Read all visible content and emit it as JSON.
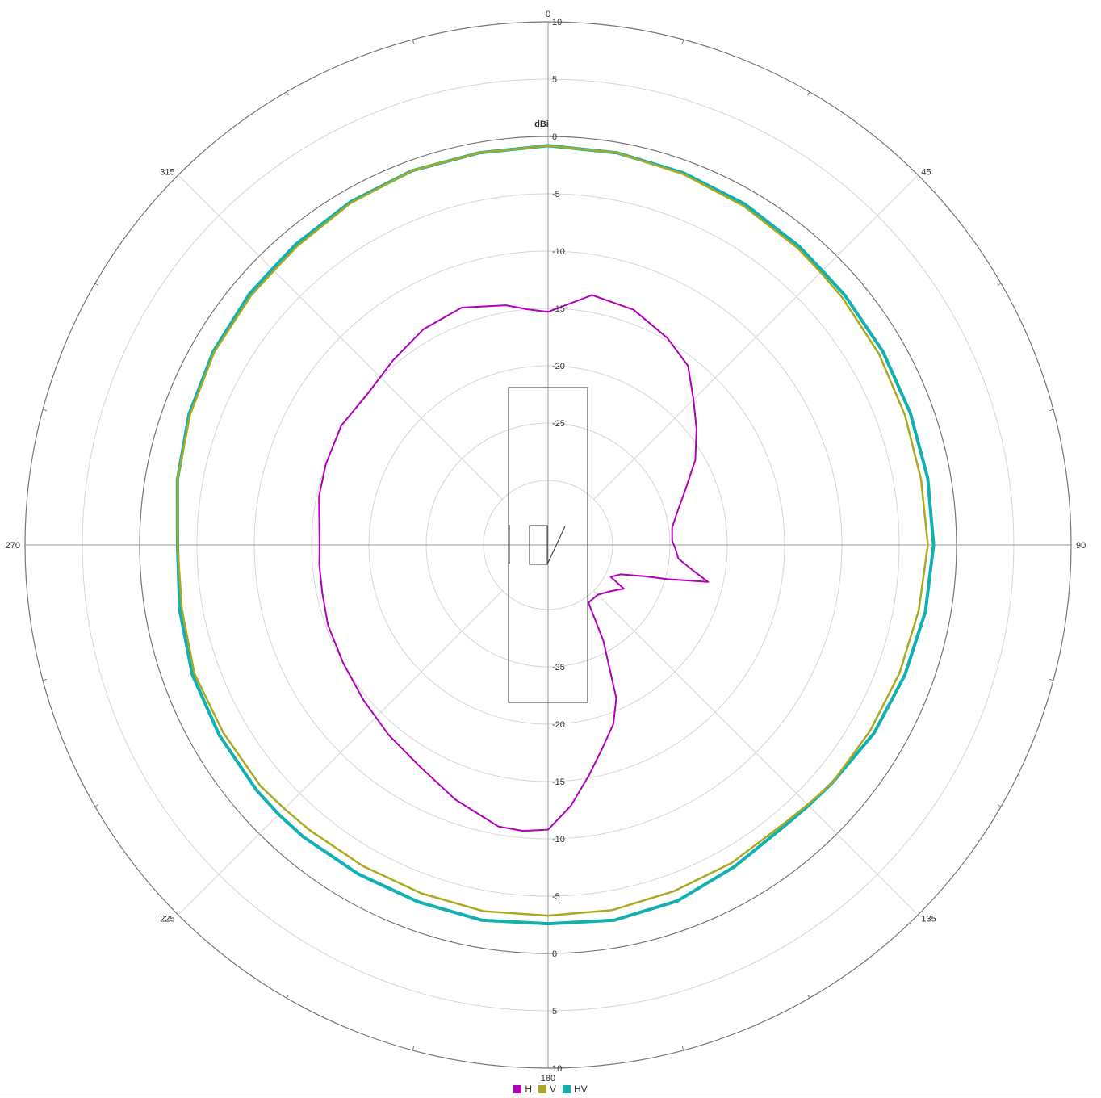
{
  "chart_data": {
    "type": "polar-line",
    "unit_label": "dBi",
    "radial_ticks": [
      "10",
      "5",
      "0",
      "-5",
      "-10",
      "-15",
      "-20",
      "-25"
    ],
    "radial_range": [
      -30,
      10
    ],
    "angle_labels": [
      "0",
      "45",
      "90",
      "135",
      "180",
      "225",
      "270",
      "315"
    ],
    "angular_grid_step_deg": 45,
    "legend_placement": "bottom-center",
    "series": [
      {
        "name": "H",
        "color": "#b000b8",
        "points": [
          [
            0,
            -15.3
          ],
          [
            10,
            -13.5
          ],
          [
            20,
            -13.8
          ],
          [
            30,
            -14.8
          ],
          [
            38,
            -15.8
          ],
          [
            45,
            -17.7
          ],
          [
            52,
            -19.2
          ],
          [
            60,
            -20.8
          ],
          [
            68,
            -22.7
          ],
          [
            75,
            -23.9
          ],
          [
            82,
            -24.7
          ],
          [
            88,
            -24.8
          ],
          [
            92,
            -24.5
          ],
          [
            96,
            -24.2
          ],
          [
            100,
            -22.8
          ],
          [
            103,
            -21.3
          ],
          [
            106,
            -24.8
          ],
          [
            108,
            -26.8
          ],
          [
            112,
            -28.8
          ],
          [
            117,
            -29.5
          ],
          [
            120,
            -28.0
          ],
          [
            126,
            -28.8
          ],
          [
            135,
            -29.5
          ],
          [
            145,
            -29.5
          ],
          [
            150,
            -26.0
          ],
          [
            156,
            -21.0
          ],
          [
            160,
            -19.0
          ],
          [
            165,
            -17.3
          ],
          [
            170,
            -15.2
          ],
          [
            175,
            -12.8
          ],
          [
            180,
            -10.8
          ],
          [
            185,
            -10.6
          ],
          [
            190,
            -10.7
          ],
          [
            200,
            -12.0
          ],
          [
            210,
            -13.3
          ],
          [
            220,
            -14.0
          ],
          [
            230,
            -14.6
          ],
          [
            240,
            -15.0
          ],
          [
            250,
            -15.2
          ],
          [
            258,
            -15.5
          ],
          [
            265,
            -15.6
          ],
          [
            270,
            -15.7
          ],
          [
            275,
            -15.6
          ],
          [
            282,
            -15.2
          ],
          [
            290,
            -15.0
          ],
          [
            300,
            -14.8
          ],
          [
            310,
            -15.1
          ],
          [
            320,
            -14.6
          ],
          [
            330,
            -13.9
          ],
          [
            340,
            -13.6
          ],
          [
            350,
            -14.4
          ],
          [
            355,
            -15.0
          ],
          [
            360,
            -15.3
          ]
        ]
      },
      {
        "name": "V",
        "color": "#aaaa22",
        "points": [
          [
            0,
            -0.8
          ],
          [
            10,
            -0.9
          ],
          [
            20,
            -1.2
          ],
          [
            30,
            -1.5
          ],
          [
            40,
            -1.8
          ],
          [
            45,
            -2.0
          ],
          [
            50,
            -2.1
          ],
          [
            60,
            -2.3
          ],
          [
            70,
            -2.5
          ],
          [
            80,
            -2.6
          ],
          [
            90,
            -2.5
          ],
          [
            100,
            -2.8
          ],
          [
            110,
            -3.0
          ],
          [
            120,
            -3.2
          ],
          [
            130,
            -3.3
          ],
          [
            135,
            -3.6
          ],
          [
            140,
            -3.8
          ],
          [
            150,
            -3.6
          ],
          [
            160,
            -3.5
          ],
          [
            170,
            -3.3
          ],
          [
            180,
            -3.3
          ],
          [
            190,
            -3.2
          ],
          [
            200,
            -3.3
          ],
          [
            210,
            -3.3
          ],
          [
            220,
            -3.2
          ],
          [
            225,
            -3.1
          ],
          [
            230,
            -2.9
          ],
          [
            240,
            -2.9
          ],
          [
            250,
            -2.8
          ],
          [
            260,
            -3.2
          ],
          [
            270,
            -3.3
          ],
          [
            280,
            -2.8
          ],
          [
            290,
            -2.4
          ],
          [
            300,
            -2.0
          ],
          [
            310,
            -1.8
          ],
          [
            315,
            -1.8
          ],
          [
            320,
            -1.6
          ],
          [
            330,
            -1.2
          ],
          [
            340,
            -0.9
          ],
          [
            350,
            -0.9
          ],
          [
            360,
            -0.8
          ]
        ]
      },
      {
        "name": "HV",
        "color": "#12b0b0",
        "points": [
          [
            0,
            -0.8
          ],
          [
            10,
            -0.9
          ],
          [
            20,
            -1.1
          ],
          [
            30,
            -1.3
          ],
          [
            40,
            -1.6
          ],
          [
            45,
            -1.8
          ],
          [
            50,
            -1.8
          ],
          [
            60,
            -1.9
          ],
          [
            70,
            -2.0
          ],
          [
            80,
            -2.0
          ],
          [
            90,
            -2.0
          ],
          [
            100,
            -2.2
          ],
          [
            110,
            -2.5
          ],
          [
            120,
            -2.8
          ],
          [
            130,
            -3.3
          ],
          [
            135,
            -3.5
          ],
          [
            140,
            -3.6
          ],
          [
            150,
            -3.2
          ],
          [
            160,
            -2.6
          ],
          [
            170,
            -2.4
          ],
          [
            180,
            -2.6
          ],
          [
            190,
            -2.4
          ],
          [
            200,
            -2.5
          ],
          [
            210,
            -2.5
          ],
          [
            220,
            -2.4
          ],
          [
            225,
            -2.4
          ],
          [
            230,
            -2.4
          ],
          [
            240,
            -2.5
          ],
          [
            250,
            -2.6
          ],
          [
            260,
            -3.0
          ],
          [
            270,
            -3.3
          ],
          [
            280,
            -2.8
          ],
          [
            290,
            -2.3
          ],
          [
            300,
            -1.9
          ],
          [
            310,
            -1.6
          ],
          [
            315,
            -1.6
          ],
          [
            320,
            -1.4
          ],
          [
            330,
            -1.1
          ],
          [
            340,
            -0.9
          ],
          [
            350,
            -0.9
          ],
          [
            360,
            -0.8
          ]
        ]
      }
    ]
  }
}
